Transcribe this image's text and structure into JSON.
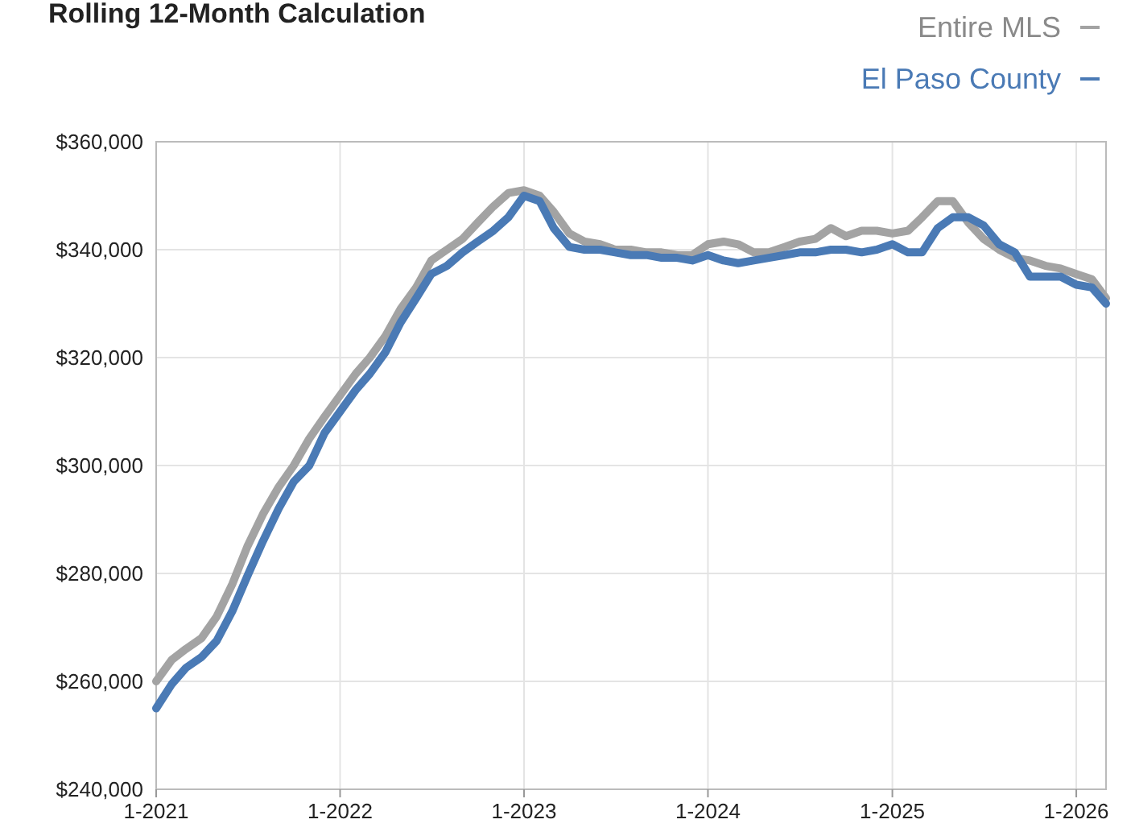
{
  "chart_data": {
    "type": "line",
    "title": "Rolling 12-Month Calculation",
    "x": [
      "2021-01",
      "2021-02",
      "2021-03",
      "2021-04",
      "2021-05",
      "2021-06",
      "2021-07",
      "2021-08",
      "2021-09",
      "2021-10",
      "2021-11",
      "2021-12",
      "2022-01",
      "2022-02",
      "2022-03",
      "2022-04",
      "2022-05",
      "2022-06",
      "2022-07",
      "2022-08",
      "2022-09",
      "2022-10",
      "2022-11",
      "2022-12",
      "2023-01",
      "2023-02",
      "2023-03",
      "2023-04",
      "2023-05",
      "2023-06",
      "2023-07",
      "2023-08",
      "2023-09",
      "2023-10",
      "2023-11",
      "2023-12",
      "2024-01",
      "2024-02",
      "2024-03",
      "2024-04",
      "2024-05",
      "2024-06",
      "2024-07",
      "2024-08",
      "2024-09",
      "2024-10",
      "2024-11",
      "2024-12",
      "2025-01",
      "2025-02",
      "2025-03",
      "2025-04",
      "2025-05",
      "2025-06",
      "2025-07",
      "2025-08",
      "2025-09",
      "2025-10",
      "2025-11",
      "2025-12",
      "2026-01",
      "2026-02",
      "2026-03"
    ],
    "series": [
      {
        "name": "Entire MLS",
        "color": "#a3a3a3",
        "values": [
          260000,
          264000,
          266000,
          268000,
          272000,
          278000,
          285000,
          291000,
          296000,
          300000,
          305000,
          309000,
          313000,
          317000,
          320000,
          324000,
          329000,
          333000,
          338000,
          340000,
          342000,
          345000,
          348000,
          350500,
          351000,
          350000,
          347000,
          343000,
          341500,
          341000,
          340000,
          340000,
          339500,
          339500,
          339000,
          339000,
          341000,
          341500,
          341000,
          339500,
          339500,
          340500,
          341500,
          342000,
          344000,
          342500,
          343500,
          343500,
          343000,
          343500,
          346000,
          349000,
          349000,
          345000,
          342000,
          340000,
          338500,
          338000,
          337000,
          336500,
          335500,
          334500,
          331000
        ]
      },
      {
        "name": "El Paso County",
        "color": "#4a7ab5",
        "values": [
          255000,
          259500,
          262500,
          264500,
          267500,
          273000,
          279500,
          286000,
          292000,
          297000,
          300000,
          306000,
          310000,
          314000,
          317000,
          321000,
          326500,
          331000,
          335500,
          337000,
          339500,
          341500,
          343500,
          346000,
          350000,
          349000,
          344000,
          340500,
          340000,
          340000,
          339500,
          339000,
          339000,
          338500,
          338500,
          338000,
          339000,
          338000,
          337500,
          338000,
          338500,
          339000,
          339500,
          339500,
          340000,
          340000,
          339500,
          340000,
          341000,
          339500,
          339500,
          344000,
          346000,
          346000,
          344500,
          341000,
          339500,
          335000,
          335000,
          335000,
          333500,
          333000,
          330000
        ]
      }
    ],
    "xlim": [
      "2021-01",
      "2026-03"
    ],
    "xticks": [
      {
        "value": "2021-01",
        "label": "1-2021"
      },
      {
        "value": "2022-01",
        "label": "1-2022"
      },
      {
        "value": "2023-01",
        "label": "1-2023"
      },
      {
        "value": "2024-01",
        "label": "1-2024"
      },
      {
        "value": "2025-01",
        "label": "1-2025"
      },
      {
        "value": "2026-01",
        "label": "1-2026"
      }
    ],
    "ylim": [
      240000,
      360000
    ],
    "yticks": [
      {
        "value": 240000,
        "label": "$240,000"
      },
      {
        "value": 260000,
        "label": "$260,000"
      },
      {
        "value": 280000,
        "label": "$280,000"
      },
      {
        "value": 300000,
        "label": "$300,000"
      },
      {
        "value": 320000,
        "label": "$320,000"
      },
      {
        "value": 340000,
        "label": "$340,000"
      },
      {
        "value": 360000,
        "label": "$360,000"
      }
    ],
    "grid": true,
    "legend": "top right",
    "line_style": "solid",
    "marker": "none"
  }
}
